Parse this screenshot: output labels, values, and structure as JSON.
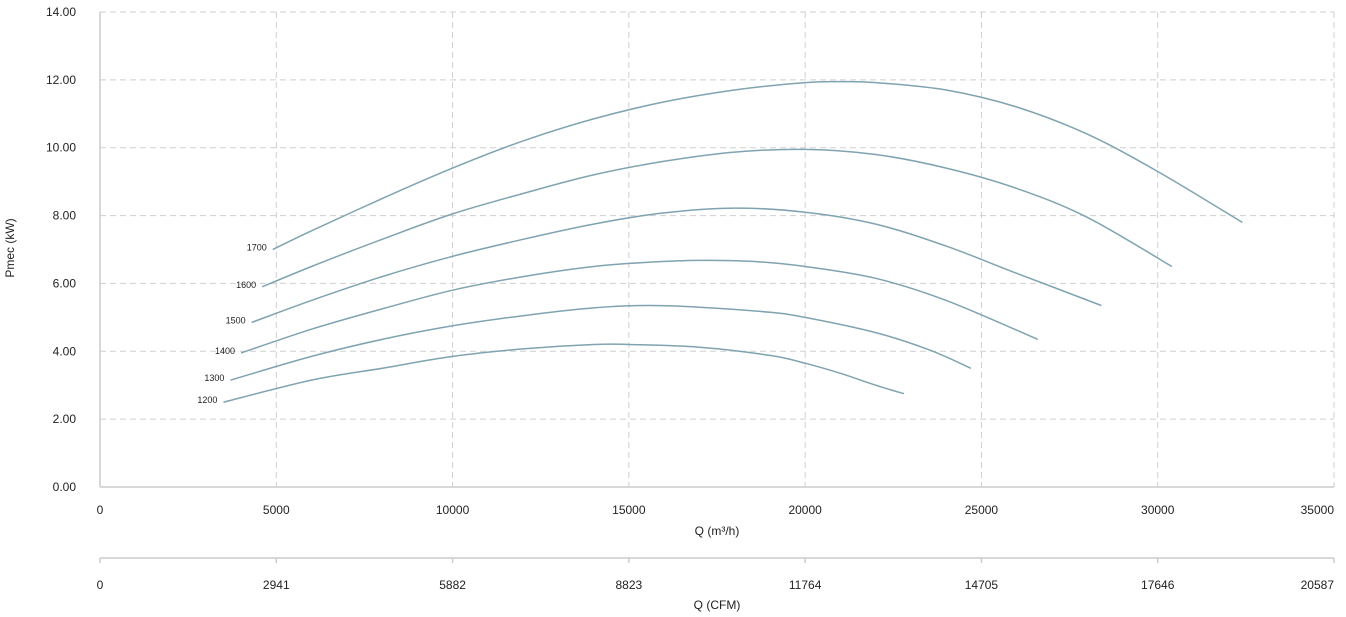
{
  "chart_data": {
    "type": "line",
    "xlabel": "Q (m³/h)",
    "ylabel": "Pmec (kW)",
    "xlim": [
      0,
      35000
    ],
    "ylim": [
      0,
      14
    ],
    "xticks": [
      "0",
      "5000",
      "10000",
      "15000",
      "20000",
      "25000",
      "30000",
      "35000"
    ],
    "yticks": [
      "0.00",
      "2.00",
      "4.00",
      "6.00",
      "8.00",
      "10.00",
      "12.00",
      "14.00"
    ],
    "secondary_x": {
      "label": "Q (CFM)",
      "ticks": [
        "0",
        "2941",
        "5882",
        "8823",
        "11764",
        "14705",
        "17646",
        "20587"
      ]
    },
    "grid": true,
    "line_color": "#7fa3b0",
    "series": [
      {
        "name": "1200",
        "x": [
          3500,
          6000,
          8000,
          10000,
          12000,
          14000,
          15000,
          17000,
          19000,
          20000,
          21000,
          22000,
          22800
        ],
        "y": [
          2.5,
          3.15,
          3.5,
          3.85,
          4.07,
          4.2,
          4.2,
          4.12,
          3.88,
          3.65,
          3.35,
          3.0,
          2.75
        ]
      },
      {
        "name": "1300",
        "x": [
          3700,
          6000,
          8000,
          10000,
          12000,
          14000,
          15500,
          17000,
          19000,
          20000,
          22000,
          23500,
          24700
        ],
        "y": [
          3.15,
          3.85,
          4.35,
          4.75,
          5.05,
          5.28,
          5.35,
          5.3,
          5.15,
          5.0,
          4.55,
          4.05,
          3.5
        ]
      },
      {
        "name": "1400",
        "x": [
          4000,
          6000,
          8000,
          10000,
          12000,
          14000,
          15500,
          17000,
          18500,
          20000,
          22000,
          24000,
          26600
        ],
        "y": [
          3.95,
          4.65,
          5.25,
          5.8,
          6.2,
          6.5,
          6.62,
          6.68,
          6.65,
          6.5,
          6.15,
          5.5,
          4.35
        ]
      },
      {
        "name": "1500",
        "x": [
          4300,
          6000,
          8000,
          10000,
          12000,
          14000,
          16000,
          18000,
          20000,
          22000,
          24000,
          26000,
          28400
        ],
        "y": [
          4.85,
          5.5,
          6.2,
          6.8,
          7.3,
          7.75,
          8.08,
          8.22,
          8.1,
          7.75,
          7.1,
          6.3,
          5.35
        ]
      },
      {
        "name": "1600",
        "x": [
          4600,
          6000,
          8000,
          10000,
          12000,
          14000,
          16000,
          18000,
          20000,
          22000,
          24000,
          26000,
          28000,
          30400
        ],
        "y": [
          5.9,
          6.5,
          7.3,
          8.05,
          8.65,
          9.2,
          9.6,
          9.87,
          9.95,
          9.8,
          9.4,
          8.8,
          7.95,
          6.5
        ]
      },
      {
        "name": "1700",
        "x": [
          4900,
          6000,
          8000,
          10000,
          12000,
          14000,
          16000,
          18000,
          20000,
          21000,
          22000,
          24000,
          26000,
          28000,
          30000,
          32400
        ],
        "y": [
          7.0,
          7.55,
          8.5,
          9.4,
          10.2,
          10.85,
          11.35,
          11.7,
          11.92,
          11.95,
          11.92,
          11.7,
          11.2,
          10.4,
          9.3,
          7.8
        ]
      }
    ]
  }
}
